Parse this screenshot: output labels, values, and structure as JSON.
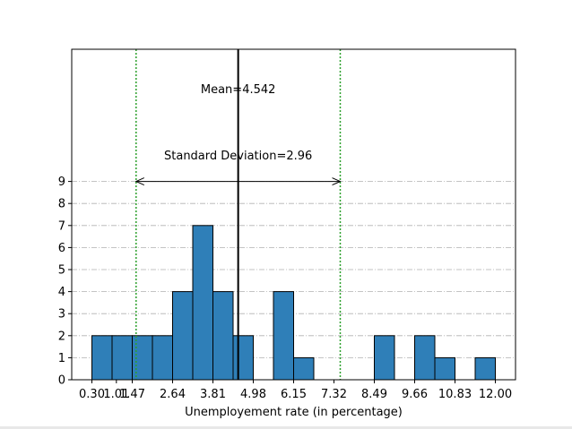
{
  "chart_data": {
    "type": "bar",
    "subtype": "histogram",
    "title": "",
    "xlabel": "Unemployement rate (in percentage)",
    "ylabel": "",
    "bin_edges": [
      0.3,
      0.885,
      1.47,
      2.055,
      2.64,
      3.225,
      3.81,
      4.395,
      4.98,
      5.565,
      6.15,
      6.735,
      7.32,
      7.905,
      8.49,
      9.075,
      9.66,
      10.245,
      10.83,
      11.415,
      12.0
    ],
    "counts": [
      2,
      2,
      2,
      2,
      4,
      7,
      4,
      2,
      0,
      4,
      1,
      0,
      0,
      0,
      2,
      0,
      2,
      1,
      0,
      1
    ],
    "xticks": [
      "0.30",
      "1.01",
      "1.47",
      "2.64",
      "3.81",
      "4.98",
      "6.15",
      "7.32",
      "8.49",
      "9.66",
      "10.83",
      "12.00"
    ],
    "xtick_values": [
      0.3,
      1.01,
      1.47,
      2.64,
      3.81,
      4.98,
      6.15,
      7.32,
      8.49,
      9.66,
      10.83,
      12.0
    ],
    "yticks": [
      "0",
      "1",
      "2",
      "3",
      "4",
      "5",
      "6",
      "7",
      "8",
      "9"
    ],
    "xlim": [
      -0.285,
      12.585
    ],
    "ylim": [
      0,
      15
    ],
    "grid": "horizontal dash-dot, y = 1..9",
    "mean": 4.542,
    "std": 2.96,
    "mean_label": "Mean=4.542",
    "std_label": "Standard Deviation=2.96",
    "arrow_y": 9,
    "colors": {
      "bar": "#2f7fb8",
      "bar_edge": "#000000",
      "mean_line": "#000000",
      "std_line": "#2ca02c",
      "grid": "#b0b0b0"
    }
  }
}
